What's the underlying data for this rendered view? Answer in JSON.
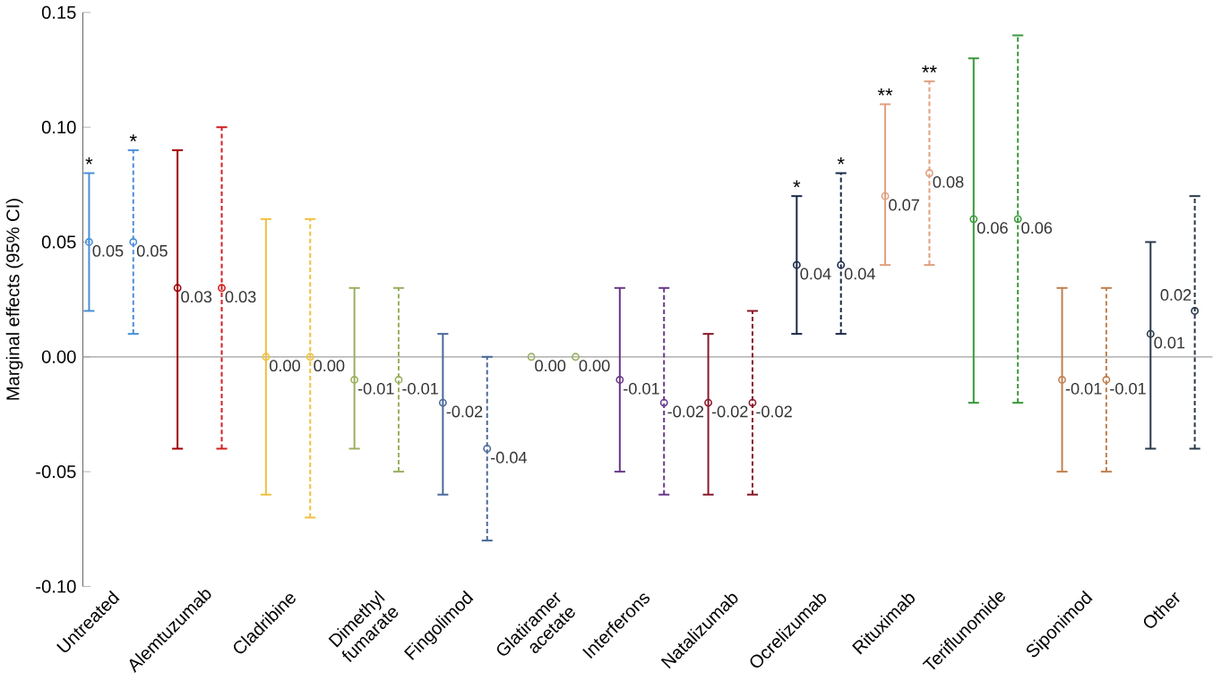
{
  "chart_data": {
    "type": "scatter",
    "ylabel": "Marginal effects (95% CI)",
    "categories": [
      "Untreated",
      "Alemtuzumab",
      "Cladribine",
      "Dimethyl fumarate",
      "Fingolimod",
      "Glatiramer acetate",
      "Interferons",
      "Natalizumab",
      "Ocrelizumab",
      "Rituximab",
      "Teriflunomide",
      "Siponimod",
      "Other"
    ],
    "series": [
      {
        "line_style": "dashed",
        "colors": [
          "#4a90d9",
          "#d42020",
          "#f0c040",
          "#9ab060",
          "#4a6a9a",
          "#9ab060",
          "#6a3a8a",
          "#8a1a2a",
          "#1a2a4a",
          "#e0a080",
          "#3a9a3a",
          "#c08050",
          "#2a3a4a"
        ],
        "values": [
          0.05,
          0.03,
          0.0,
          -0.01,
          -0.04,
          0.0,
          -0.02,
          -0.02,
          0.04,
          0.08,
          0.06,
          -0.01,
          0.02
        ],
        "errors": [
          [
            0.01,
            0.09
          ],
          [
            -0.04,
            0.1
          ],
          [
            -0.07,
            0.06
          ],
          [
            -0.05,
            0.03
          ],
          [
            -0.08,
            0.0
          ],
          null,
          [
            -0.06,
            0.03
          ],
          [
            -0.06,
            0.02
          ],
          [
            0.01,
            0.08
          ],
          [
            0.04,
            0.12
          ],
          [
            -0.02,
            0.14
          ],
          [
            -0.05,
            0.03
          ],
          [
            -0.04,
            0.07
          ]
        ],
        "value_labels": [
          "0.05",
          "0.03",
          "0.00",
          "-0.01",
          "-0.04",
          "0.00",
          "-0.02",
          "-0.02",
          "0.04",
          "0.08",
          "0.06",
          "-0.01",
          "0.02"
        ]
      },
      {
        "line_style": "solid",
        "colors": [
          "#4a90d9",
          "#a00000",
          "#f0c040",
          "#9ab060",
          "#4a6a9a",
          "#9ab060",
          "#6a3a8a",
          "#8a1a2a",
          "#1a2a4a",
          "#e0a080",
          "#3a9a3a",
          "#c08050",
          "#2a3a4a"
        ],
        "values": [
          0.05,
          0.03,
          0.0,
          -0.01,
          -0.02,
          0.0,
          -0.01,
          -0.02,
          0.04,
          0.07,
          0.06,
          -0.01,
          0.01
        ],
        "errors": [
          [
            0.02,
            0.08
          ],
          [
            -0.04,
            0.09
          ],
          [
            -0.06,
            0.06
          ],
          [
            -0.04,
            0.03
          ],
          [
            -0.06,
            0.01
          ],
          null,
          [
            -0.05,
            0.03
          ],
          [
            -0.06,
            0.01
          ],
          [
            0.01,
            0.07
          ],
          [
            0.04,
            0.11
          ],
          [
            -0.02,
            0.13
          ],
          [
            -0.05,
            0.03
          ],
          [
            -0.04,
            0.05
          ]
        ],
        "value_labels": [
          "0.05",
          "0.03",
          "0.00",
          "-0.01",
          "-0.02",
          "0.00",
          "-0.01",
          "-0.02",
          "0.04",
          "0.07",
          "0.06",
          "-0.01",
          "0.01"
        ]
      }
    ],
    "annotations": [
      "*",
      "*",
      "*",
      "*",
      "**",
      "**"
    ],
    "ylim": [
      -0.1,
      0.15
    ],
    "yticks": [
      {
        "value": -0.1,
        "label": "-0.10"
      },
      {
        "value": -0.05,
        "label": "-0.05"
      },
      {
        "value": 0.0,
        "label": "0.00"
      },
      {
        "value": 0.05,
        "label": "0.05"
      },
      {
        "value": 0.1,
        "label": "0.10"
      },
      {
        "value": 0.15,
        "label": "0.15"
      }
    ],
    "ref_lines": [
      {
        "axis": "y",
        "value": 0,
        "color": "#a0a0a0"
      }
    ],
    "marker": "circle"
  }
}
